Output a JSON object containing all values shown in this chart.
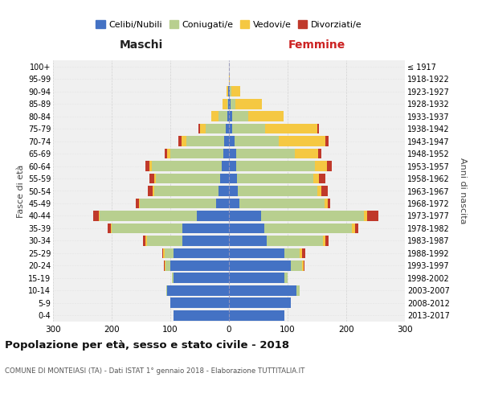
{
  "age_groups": [
    "0-4",
    "5-9",
    "10-14",
    "15-19",
    "20-24",
    "25-29",
    "30-34",
    "35-39",
    "40-44",
    "45-49",
    "50-54",
    "55-59",
    "60-64",
    "65-69",
    "70-74",
    "75-79",
    "80-84",
    "85-89",
    "90-94",
    "95-99",
    "100+"
  ],
  "birth_years": [
    "2013-2017",
    "2008-2012",
    "2003-2007",
    "1998-2002",
    "1993-1997",
    "1988-1992",
    "1983-1987",
    "1978-1982",
    "1973-1977",
    "1968-1972",
    "1963-1967",
    "1958-1962",
    "1953-1957",
    "1948-1952",
    "1943-1947",
    "1938-1942",
    "1933-1937",
    "1928-1932",
    "1923-1927",
    "1918-1922",
    "≤ 1917"
  ],
  "male": {
    "celibi": [
      95,
      100,
      105,
      95,
      100,
      95,
      80,
      80,
      55,
      22,
      18,
      15,
      12,
      10,
      8,
      5,
      3,
      1,
      1,
      0,
      0
    ],
    "coniugati": [
      0,
      0,
      2,
      2,
      8,
      15,
      60,
      120,
      165,
      130,
      110,
      110,
      120,
      90,
      65,
      35,
      15,
      2,
      1,
      0,
      0
    ],
    "vedovi": [
      0,
      0,
      0,
      0,
      1,
      2,
      2,
      2,
      2,
      2,
      2,
      2,
      3,
      5,
      8,
      10,
      12,
      8,
      2,
      0,
      0
    ],
    "divorziati": [
      0,
      0,
      0,
      0,
      2,
      2,
      5,
      5,
      10,
      5,
      8,
      8,
      8,
      5,
      5,
      2,
      0,
      0,
      0,
      0,
      0
    ]
  },
  "female": {
    "nubili": [
      95,
      105,
      115,
      95,
      105,
      95,
      65,
      60,
      55,
      18,
      15,
      14,
      12,
      12,
      10,
      6,
      5,
      3,
      2,
      0,
      0
    ],
    "coniugate": [
      0,
      0,
      5,
      5,
      20,
      25,
      95,
      150,
      175,
      145,
      135,
      130,
      135,
      100,
      75,
      55,
      28,
      8,
      2,
      0,
      0
    ],
    "vedove": [
      0,
      0,
      0,
      0,
      2,
      5,
      5,
      5,
      5,
      5,
      8,
      10,
      20,
      40,
      80,
      90,
      60,
      45,
      15,
      2,
      0
    ],
    "divorziate": [
      0,
      0,
      0,
      0,
      2,
      5,
      5,
      5,
      20,
      5,
      10,
      10,
      8,
      5,
      5,
      2,
      0,
      0,
      0,
      0,
      0
    ]
  },
  "colors": {
    "celibi_nubili": "#4472c4",
    "coniugati": "#b8cf8f",
    "vedovi": "#f5c842",
    "divorziati": "#c0392b"
  },
  "xlim": 300,
  "title": "Popolazione per età, sesso e stato civile - 2018",
  "subtitle": "COMUNE DI MONTEIASI (TA) - Dati ISTAT 1° gennaio 2018 - Elaborazione TUTTITALIA.IT",
  "ylabel_left": "Fasce di età",
  "ylabel_right": "Anni di nascita",
  "xlabel_left": "Maschi",
  "xlabel_right": "Femmine",
  "background_color": "#ffffff",
  "plot_bg": "#f0f0f0",
  "grid_color": "#cccccc"
}
